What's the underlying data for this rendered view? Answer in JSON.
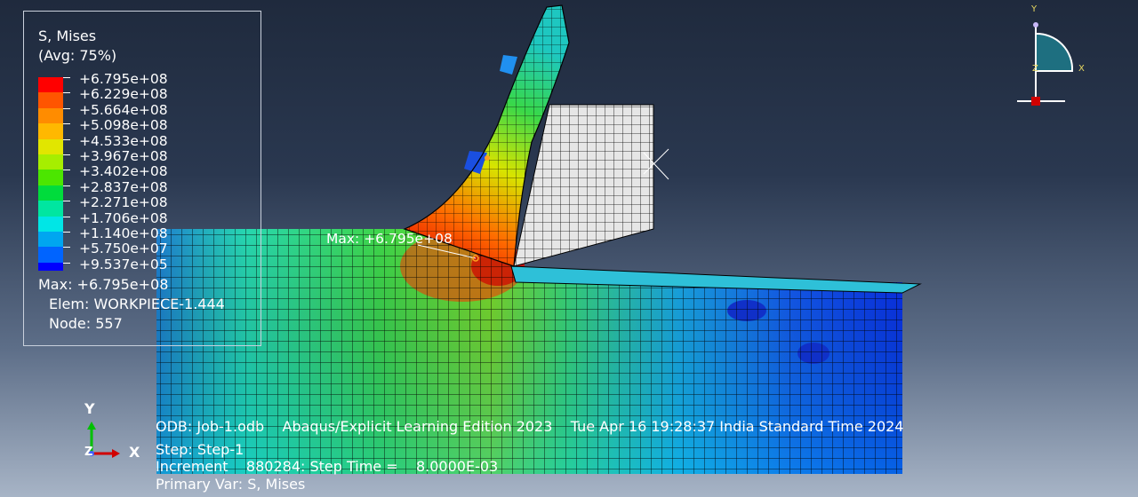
{
  "legend": {
    "title": "S, Mises",
    "subtitle": "(Avg: 75%)",
    "values": [
      "+6.795e+08",
      "+6.229e+08",
      "+5.664e+08",
      "+5.098e+08",
      "+4.533e+08",
      "+3.967e+08",
      "+3.402e+08",
      "+2.837e+08",
      "+2.271e+08",
      "+1.706e+08",
      "+1.140e+08",
      "+5.750e+07",
      "+9.537e+05"
    ],
    "colors": [
      "#ff0000",
      "#ff5500",
      "#ff8c00",
      "#ffb800",
      "#e1e600",
      "#a6ee00",
      "#4ce600",
      "#00dc3c",
      "#00e6a0",
      "#00e6e6",
      "#00a6f0",
      "#0064ff",
      "#0000ff"
    ],
    "max_line": "Max: +6.795e+08",
    "elem_line": "Elem: WORKPIECE-1.444",
    "node_line": "Node: 557"
  },
  "viewport": {
    "max_marker_label": "Max: +6.795e+08"
  },
  "triad": {
    "y": "Y",
    "x": "X",
    "z": "Z"
  },
  "view_triad": {
    "y": "Y",
    "x": "X",
    "z": "Z"
  },
  "footer": {
    "odb_line": "ODB: Job-1.odb    Abaqus/Explicit Learning Edition 2023    Tue Apr 16 19:28:37 India Standard Time 2024",
    "step_line": "Step: Step-1",
    "increment_line": "Increment    880284: Step Time =    8.0000E-03",
    "primary_var_line": "Primary Var: S, Mises"
  }
}
